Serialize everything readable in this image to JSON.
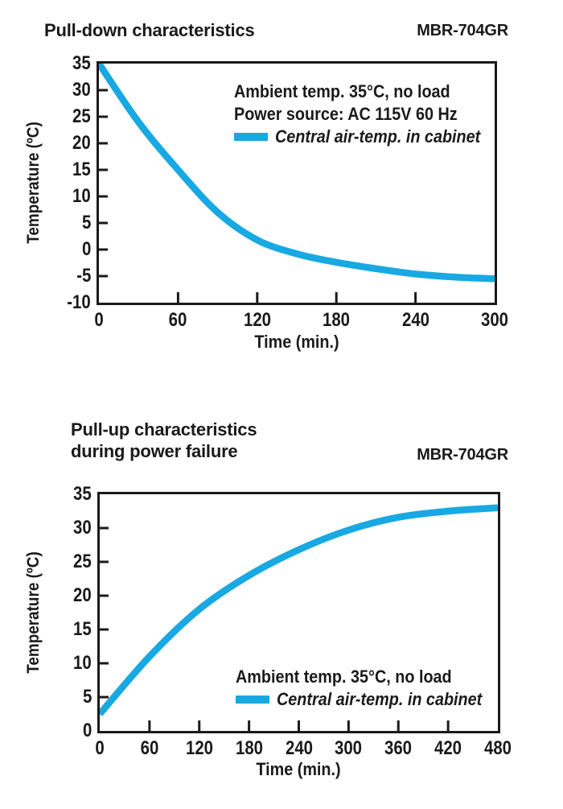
{
  "colors": {
    "curve": "#18A8E2",
    "axis": "#1a1a1a",
    "text": "#1a1a1a",
    "background": "#ffffff"
  },
  "chart_data": [
    {
      "type": "line",
      "title_lines": [
        "Pull-down characteristics"
      ],
      "model": "MBR-704GR",
      "xlabel": "Time (min.)",
      "ylabel": "Temperature (ºC)",
      "xlim": [
        0,
        300
      ],
      "ylim": [
        -10,
        35
      ],
      "xticks": [
        0,
        60,
        120,
        180,
        240,
        300
      ],
      "yticks": [
        35,
        30,
        25,
        20,
        15,
        10,
        5,
        0,
        -5,
        -10
      ],
      "grid": false,
      "annotations": [
        "Ambient temp. 35°C, no load",
        "Power source: AC 115V 60 Hz"
      ],
      "legend": {
        "label": "Central air-temp. in cabinet",
        "color": "#18A8E2",
        "position": "upper-right"
      },
      "series": [
        {
          "name": "Central air-temp. in cabinet",
          "points": [
            [
              0,
              35
            ],
            [
              30,
              24
            ],
            [
              60,
              15
            ],
            [
              90,
              7
            ],
            [
              120,
              1.8
            ],
            [
              150,
              -0.8
            ],
            [
              180,
              -2.4
            ],
            [
              210,
              -3.6
            ],
            [
              240,
              -4.6
            ],
            [
              270,
              -5.2
            ],
            [
              300,
              -5.5
            ]
          ]
        }
      ]
    },
    {
      "type": "line",
      "title_lines": [
        "Pull-up characteristics",
        "during power failure"
      ],
      "model": "MBR-704GR",
      "xlabel": "Time (min.)",
      "ylabel": "Temperature (ºC)",
      "xlim": [
        0,
        480
      ],
      "ylim": [
        0,
        35
      ],
      "xticks": [
        0,
        60,
        120,
        180,
        240,
        300,
        360,
        420,
        480
      ],
      "yticks": [
        35,
        30,
        25,
        20,
        15,
        10,
        5,
        0
      ],
      "grid": false,
      "annotations": [
        "Ambient temp. 35°C, no load"
      ],
      "legend": {
        "label": "Central air-temp. in cabinet",
        "color": "#18A8E2",
        "position": "lower-right"
      },
      "series": [
        {
          "name": "Central air-temp. in cabinet",
          "points": [
            [
              0,
              2.5
            ],
            [
              60,
              11
            ],
            [
              120,
              18
            ],
            [
              180,
              23
            ],
            [
              240,
              26.8
            ],
            [
              300,
              29.7
            ],
            [
              360,
              31.6
            ],
            [
              420,
              32.5
            ],
            [
              480,
              33
            ]
          ]
        }
      ]
    }
  ]
}
